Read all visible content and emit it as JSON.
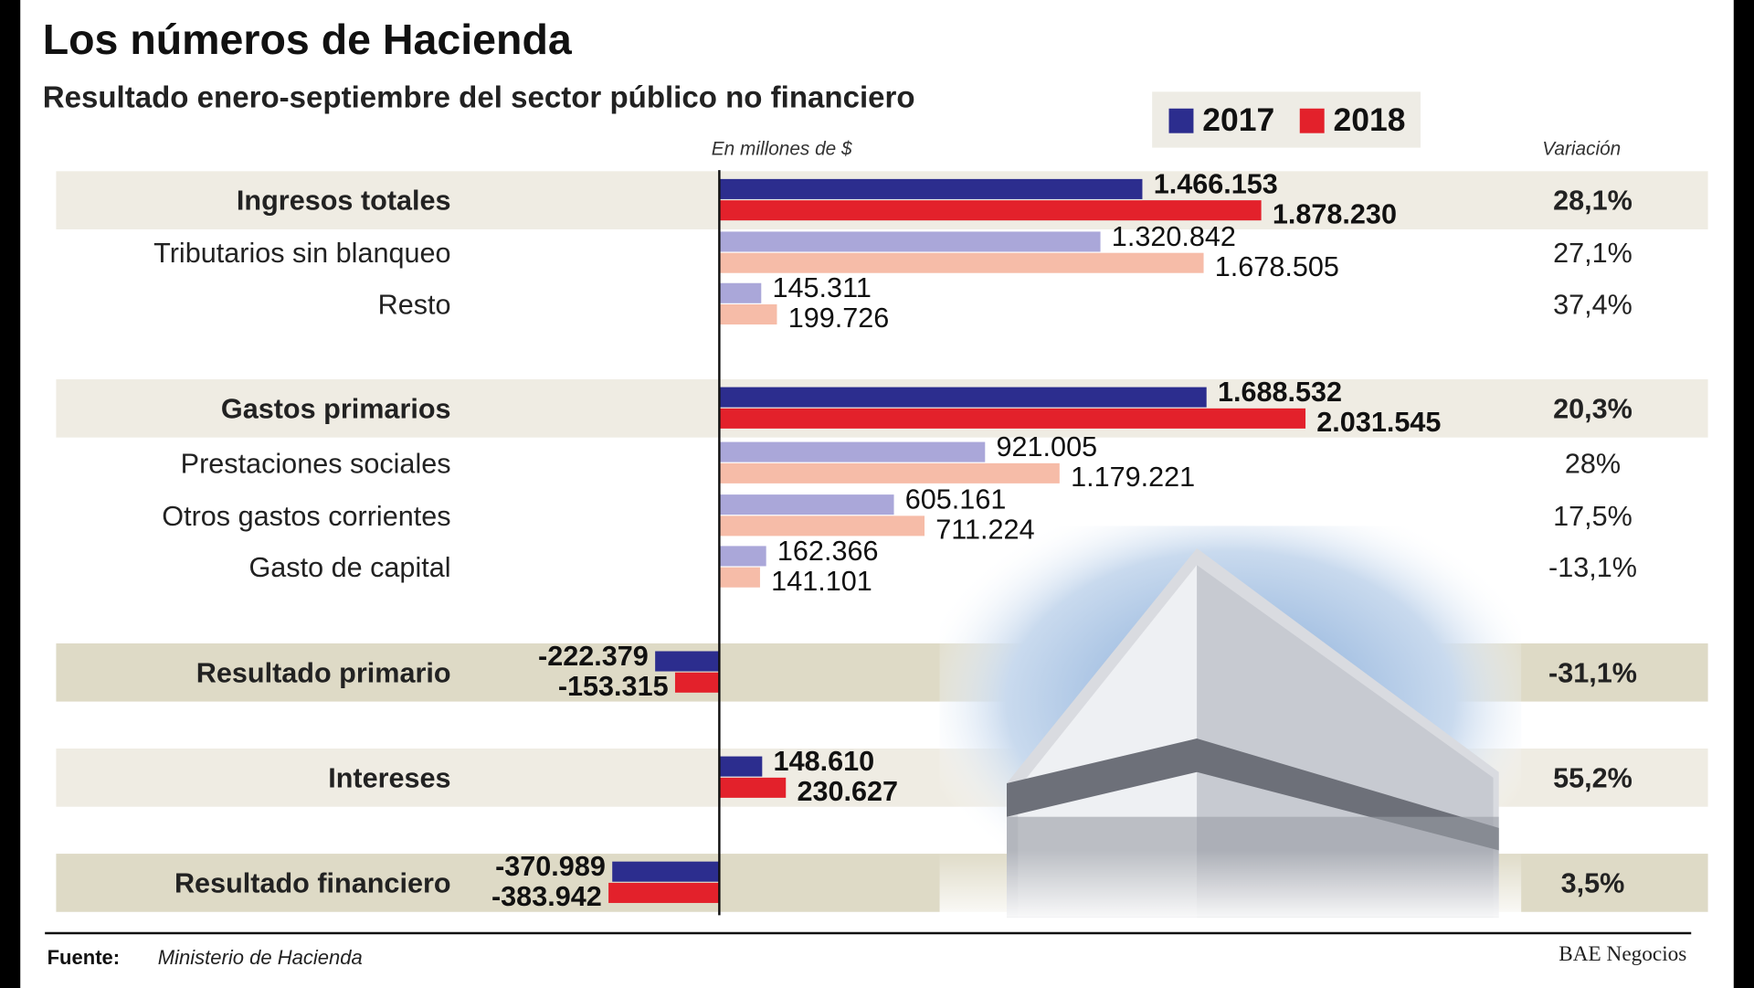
{
  "chart_data": {
    "type": "bar",
    "orientation": "horizontal",
    "title": "Los números de Hacienda",
    "subtitle": "Resultado enero-septiembre del sector público no financiero",
    "unit_label": "En millones de $",
    "variation_label": "Variación",
    "categories": [
      "Ingresos totales",
      "Tributarios sin blanqueo",
      "Resto",
      "Gastos primarios",
      "Prestaciones sociales",
      "Otros gastos corrientes",
      "Gasto de capital",
      "Resultado primario",
      "Intereses",
      "Resultado financiero"
    ],
    "highlighted": [
      true,
      false,
      false,
      true,
      false,
      false,
      false,
      true,
      true,
      true
    ],
    "series": [
      {
        "name": "2017",
        "color": "#2c2d8e",
        "light_color": "#aaa7d9",
        "values": [
          1466153,
          1320842,
          145311,
          1688532,
          921005,
          605161,
          162366,
          -222379,
          148610,
          -370989
        ],
        "value_labels": [
          "1.466.153",
          "1.320.842",
          "145.311",
          "1.688.532",
          "921.005",
          "605.161",
          "162.366",
          "-222.379",
          "148.610",
          "-370.989"
        ]
      },
      {
        "name": "2018",
        "color": "#e3212b",
        "light_color": "#f6bca8",
        "values": [
          1878230,
          1678505,
          199726,
          2031545,
          1179221,
          711224,
          141101,
          -153315,
          230627,
          -383942
        ],
        "value_labels": [
          "1.878.230",
          "1.678.505",
          "199.726",
          "2.031.545",
          "1.179.221",
          "711.224",
          "141.101",
          "-153.315",
          "230.627",
          "-383.942"
        ]
      }
    ],
    "variations": [
      "28,1%",
      "27,1%",
      "37,4%",
      "20,3%",
      "28%",
      "17,5%",
      "-13,1%",
      "-31,1%",
      "55,2%",
      "3,5%"
    ],
    "xlim": [
      -500000,
      2500000
    ],
    "source_label": "Fuente:",
    "source": "Ministerio de Hacienda",
    "credit": "BAE Negocios"
  }
}
